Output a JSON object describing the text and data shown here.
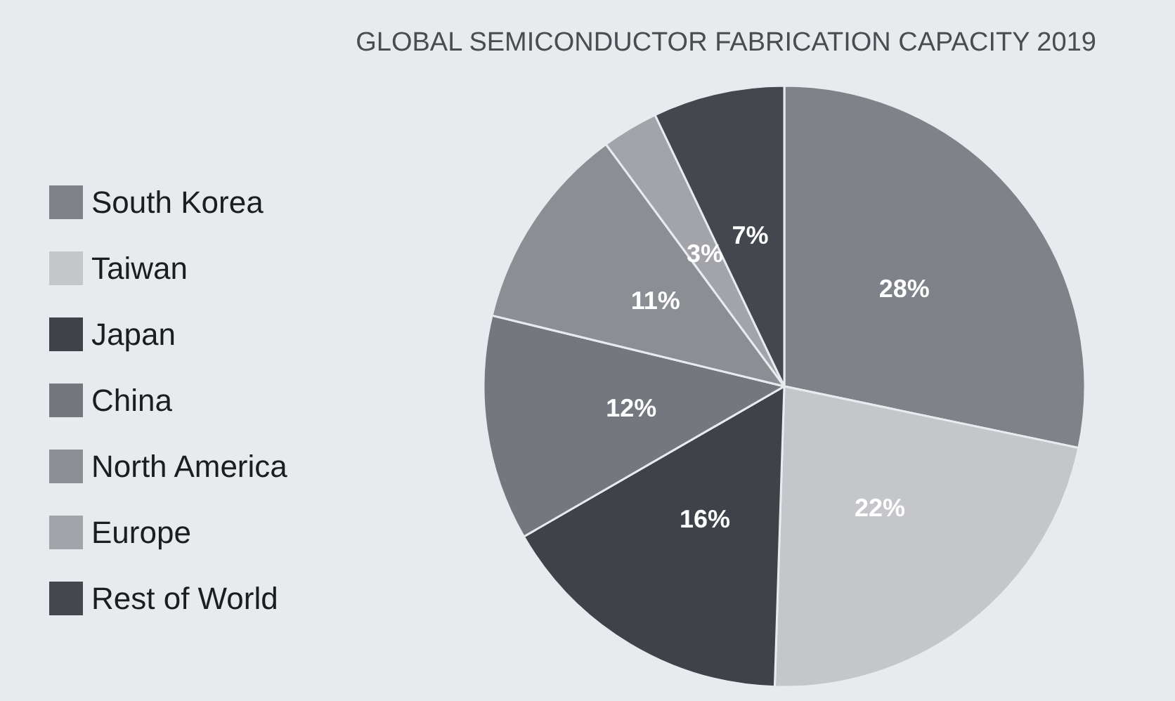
{
  "chart_data": {
    "type": "pie",
    "title": "GLOBAL SEMICONDUCTOR FABRICATION CAPACITY 2019",
    "categories": [
      "South Korea",
      "Taiwan",
      "Japan",
      "China",
      "North America",
      "Europe",
      "Rest of World"
    ],
    "values": [
      28,
      22,
      16,
      12,
      11,
      3,
      7
    ],
    "colors": [
      "#7f8289",
      "#c4c6ca",
      "#40424a",
      "#74777e",
      "#8b8e93",
      "#a2a4a9",
      "#45474f"
    ],
    "value_labels": [
      "28%",
      "22%",
      "16%",
      "12%",
      "11%",
      "3%",
      "7%"
    ],
    "legend": "left"
  }
}
